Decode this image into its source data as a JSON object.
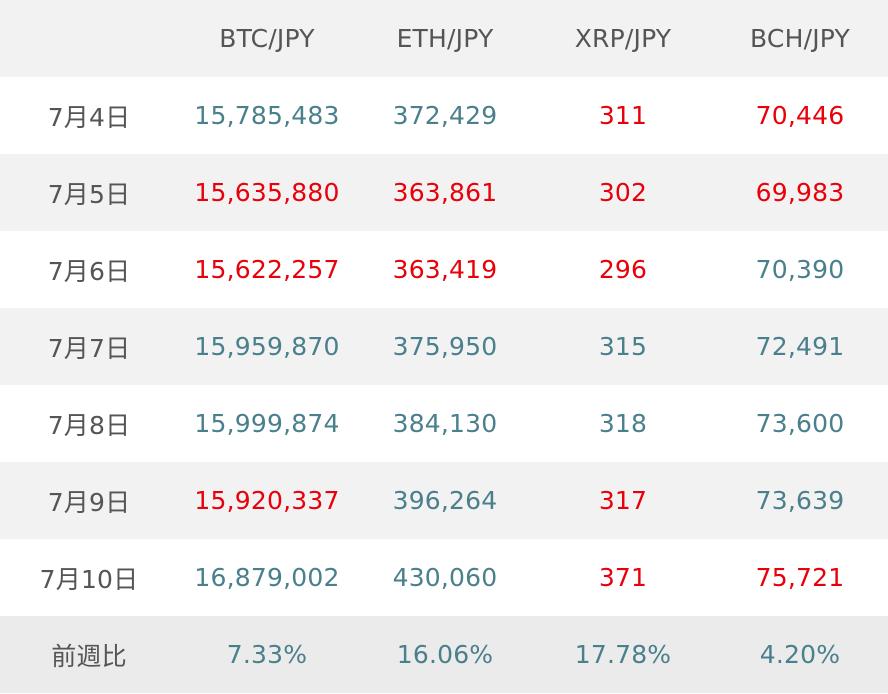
{
  "table": {
    "headers": [
      "",
      "BTC/JPY",
      "ETH/JPY",
      "XRP/JPY",
      "BCH/JPY"
    ],
    "rows": [
      {
        "date": "7月4日",
        "btc": "15,785,483",
        "eth": "372,429",
        "xrp": "311",
        "bch": "70,446"
      },
      {
        "date": "7月5日",
        "btc": "15,635,880",
        "eth": "363,861",
        "xrp": "302",
        "bch": "69,983"
      },
      {
        "date": "7月6日",
        "btc": "15,622,257",
        "eth": "363,419",
        "xrp": "296",
        "bch": "70,390"
      },
      {
        "date": "7月7日",
        "btc": "15,959,870",
        "eth": "375,950",
        "xrp": "315",
        "bch": "72,491"
      },
      {
        "date": "7月8日",
        "btc": "15,999,874",
        "eth": "384,130",
        "xrp": "318",
        "bch": "73,600"
      },
      {
        "date": "7月9日",
        "btc": "15,920,337",
        "eth": "396,264",
        "xrp": "317",
        "bch": "73,639"
      },
      {
        "date": "7月10日",
        "btc": "16,879,002",
        "eth": "430,060",
        "xrp": "371",
        "bch": "75,721"
      }
    ],
    "summary": {
      "label": "前週比",
      "btc": "7.33%",
      "eth": "16.06%",
      "xrp": "17.78%",
      "bch": "4.20%"
    }
  },
  "colors": {
    "up": "#4a7f8c",
    "down": "#e8000b",
    "header_bg": "#f2f2f2",
    "stripe_bg": "#f2f2f2",
    "summary_bg": "#ebebeb",
    "label_text": "#555555"
  }
}
